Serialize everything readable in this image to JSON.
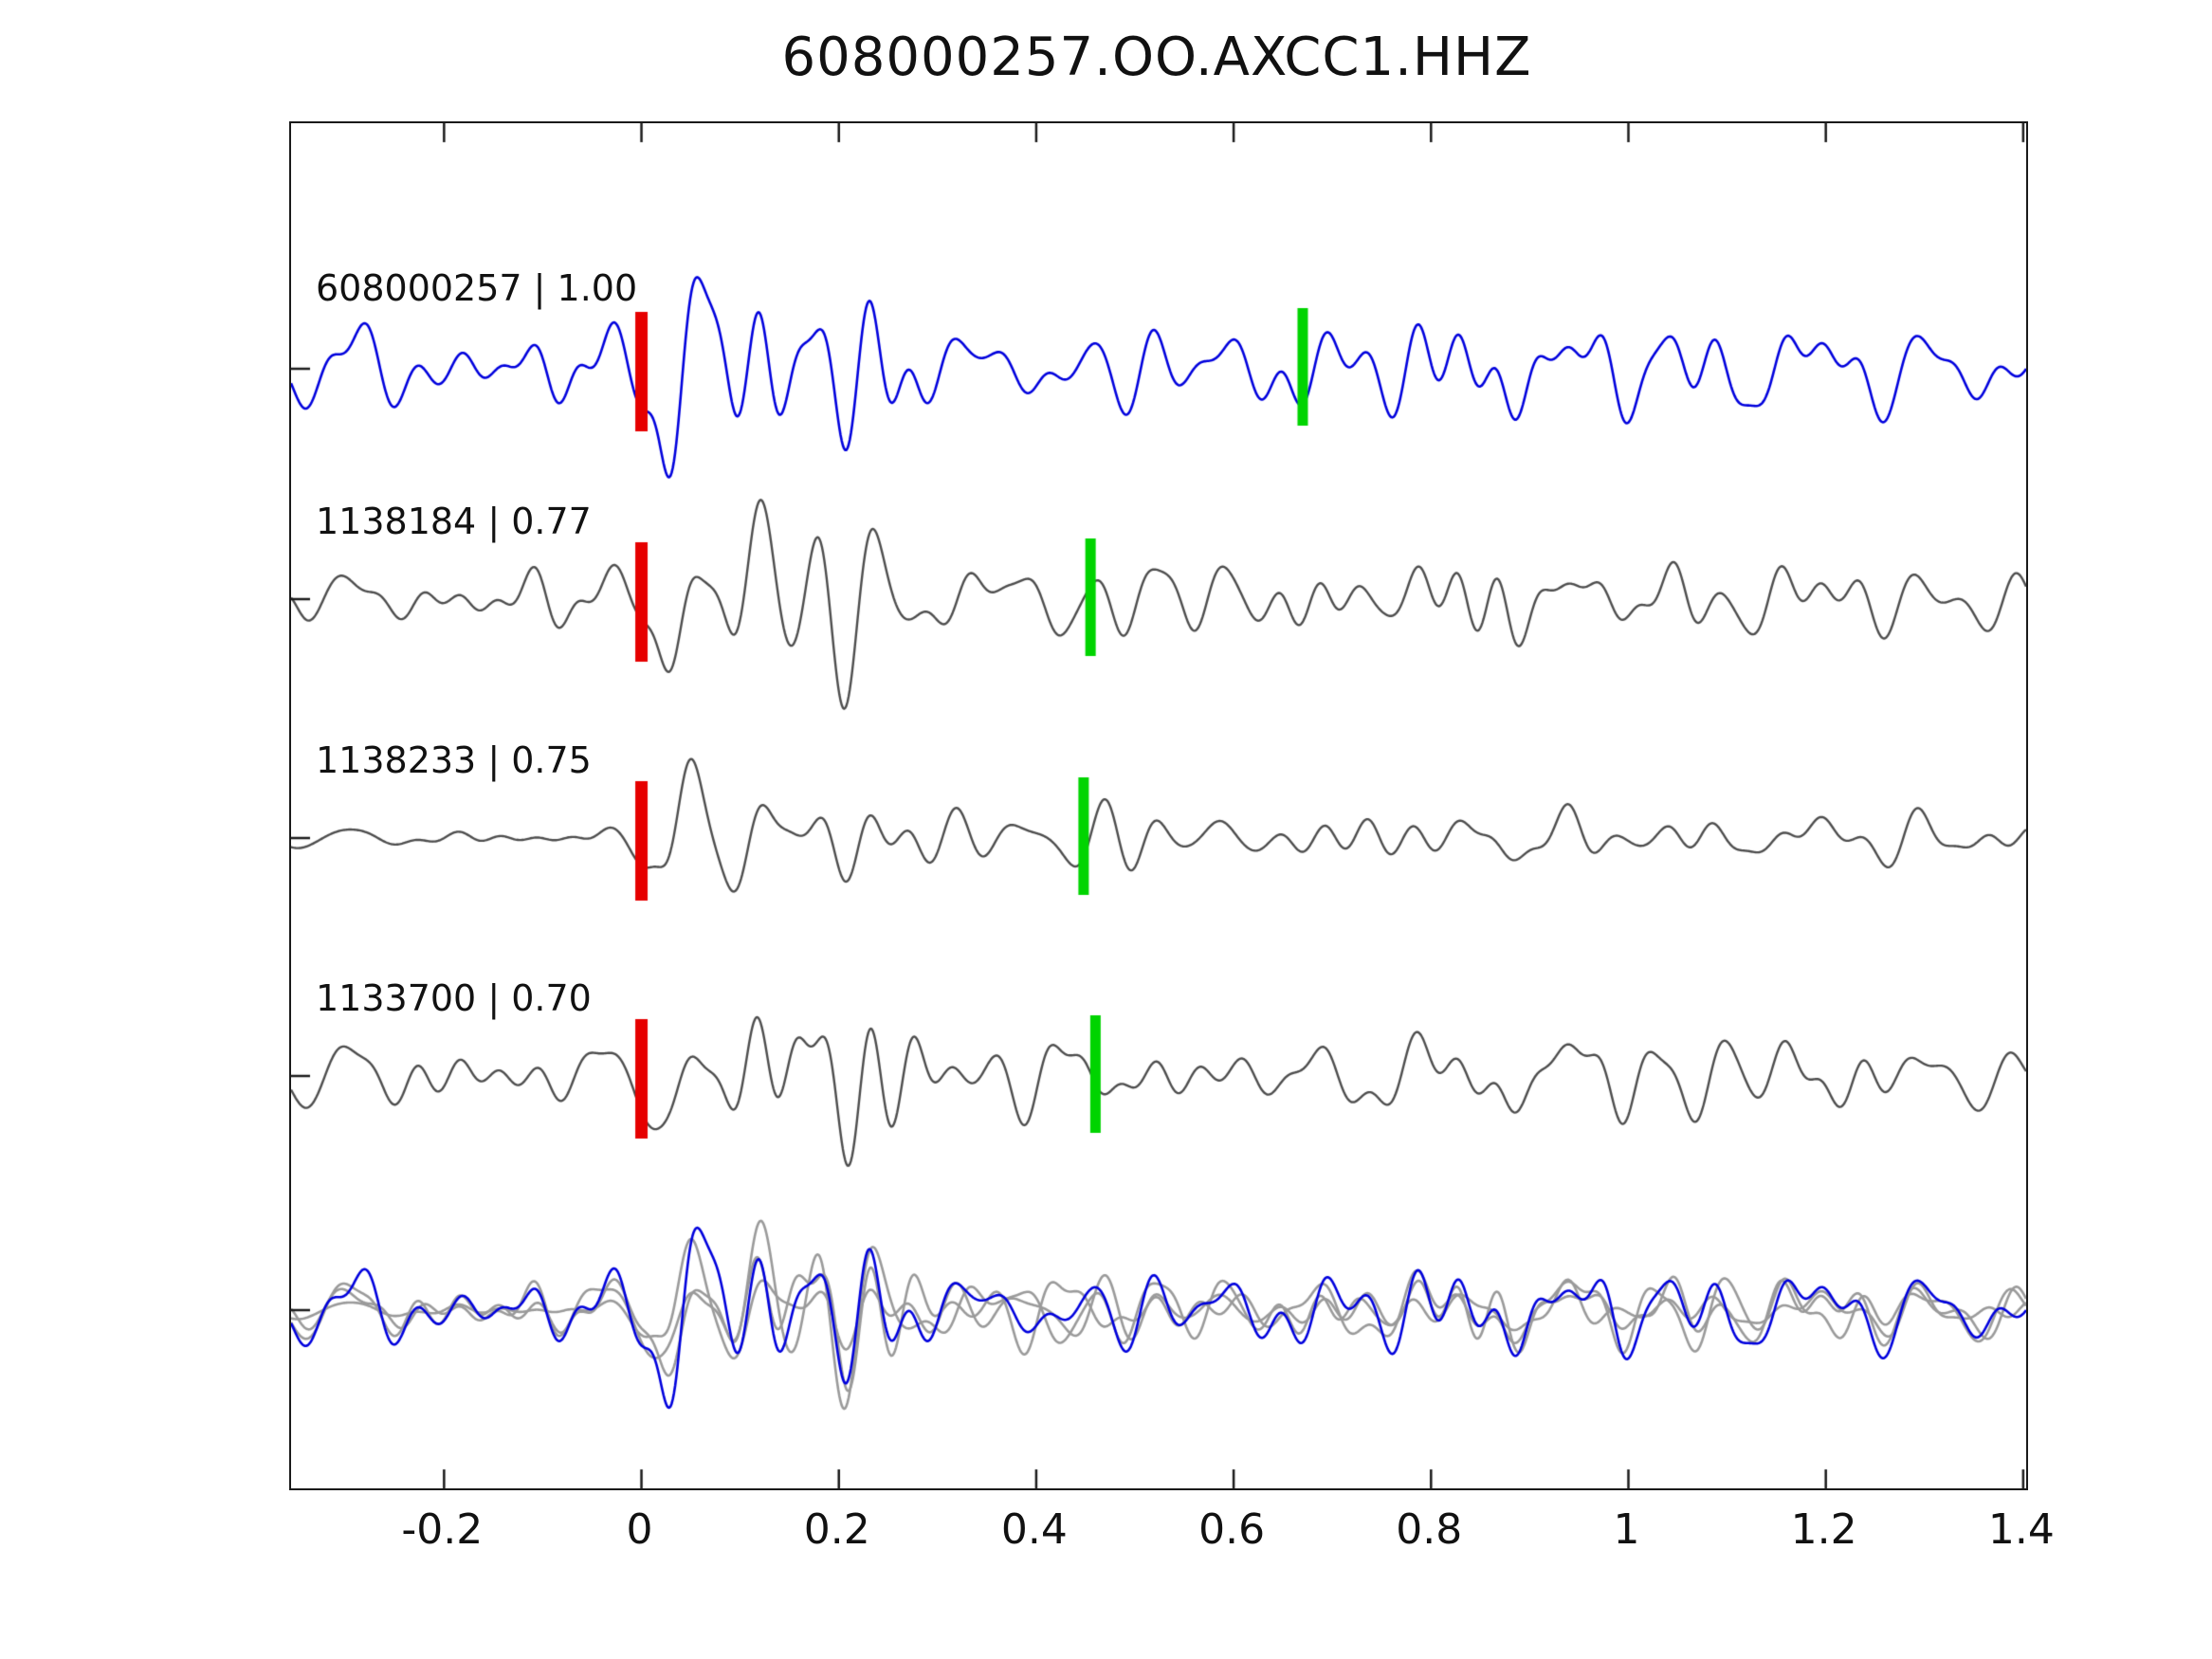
{
  "title": "608000257.OO.AXCC1.HHZ",
  "chart_data": {
    "type": "line",
    "title": "608000257.OO.AXCC1.HHZ",
    "xlabel": "",
    "ylabel": "",
    "xlim": [
      -0.355,
      1.403
    ],
    "x_ticks": [
      -0.2,
      0,
      0.2,
      0.4,
      0.6,
      0.8,
      1,
      1.2,
      1.4
    ],
    "x_tick_labels": [
      "-0.2",
      "0",
      "0.2",
      "0.4",
      "0.6",
      "0.8",
      "1",
      "1.2",
      "1.4"
    ],
    "grid": false,
    "legend": "none",
    "panel_description": "Template-matching seismogram comparison: four aligned waveform traces (event id | correlation coefficient), red pick bar at t=0 and green pick bar later on each trace, plus a bottom panel overlaying all traces (matches in gray, detection in blue).",
    "traces": [
      {
        "id": "608000257",
        "correlation": 1.0,
        "label": "608000257 | 1.00",
        "color": "#0000dd",
        "red_pick_t": 0.0,
        "green_pick_t": 0.67,
        "pre_noise": 0.36,
        "mix": 1.0,
        "amp": 1.05,
        "seed": 101
      },
      {
        "id": "1138184",
        "correlation": 0.77,
        "label": "1138184 | 0.77",
        "color": "#4d4d4d",
        "red_pick_t": 0.0,
        "green_pick_t": 0.455,
        "pre_noise": 0.33,
        "mix": 0.77,
        "amp": 0.95,
        "seed": 202
      },
      {
        "id": "1138233",
        "correlation": 0.75,
        "label": "1138233 | 0.75",
        "color": "#4d4d4d",
        "red_pick_t": 0.0,
        "green_pick_t": 0.448,
        "pre_noise": 0.1,
        "mix": 0.75,
        "amp": 0.92,
        "seed": 303
      },
      {
        "id": "1133700",
        "correlation": 0.7,
        "label": "1133700 | 0.70",
        "color": "#4d4d4d",
        "red_pick_t": 0.0,
        "green_pick_t": 0.46,
        "pre_noise": 0.3,
        "mix": 0.7,
        "amp": 0.95,
        "seed": 404
      }
    ],
    "overlay": {
      "gray_color": "#9a9a9a",
      "highlight_color": "#0000dd",
      "amp": 0.9
    },
    "marker_colors": {
      "red": "#e60000",
      "green": "#00d400"
    },
    "axis_color": "#1a1a1a",
    "base_seed": 777
  }
}
